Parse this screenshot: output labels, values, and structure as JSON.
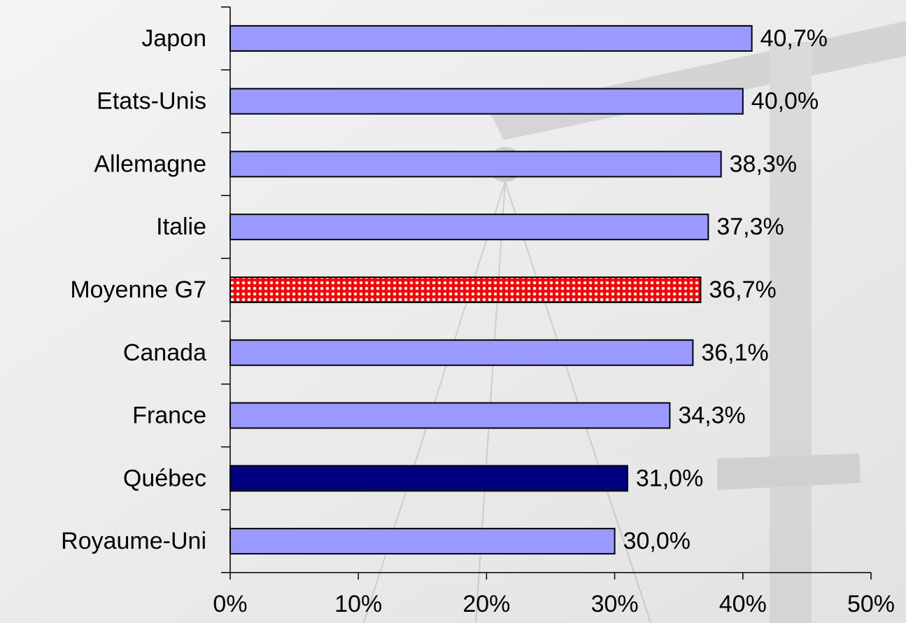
{
  "chart_data": {
    "type": "bar",
    "orientation": "horizontal",
    "categories": [
      "Japon",
      "Etats-Unis",
      "Allemagne",
      "Italie",
      "Moyenne G7",
      "Canada",
      "France",
      "Québec",
      "Royaume-Uni"
    ],
    "values": [
      40.7,
      40.0,
      38.3,
      37.3,
      36.7,
      36.1,
      34.3,
      31.0,
      30.0
    ],
    "value_labels": [
      "40,7%",
      "40,0%",
      "38,3%",
      "37,3%",
      "36,7%",
      "36,1%",
      "34,3%",
      "31,0%",
      "30,0%"
    ],
    "colors": [
      "#9999ff",
      "#9999ff",
      "#9999ff",
      "#9999ff",
      "#ff0000",
      "#9999ff",
      "#9999ff",
      "#000080",
      "#9999ff"
    ],
    "xlim": [
      0,
      50
    ],
    "xticks": [
      {
        "value": 0,
        "label": "0%"
      },
      {
        "value": 10,
        "label": "10%"
      },
      {
        "value": 20,
        "label": "20%"
      },
      {
        "value": 30,
        "label": "30%"
      },
      {
        "value": 40,
        "label": "40%"
      },
      {
        "value": 50,
        "label": "50%"
      }
    ],
    "grid": false
  }
}
